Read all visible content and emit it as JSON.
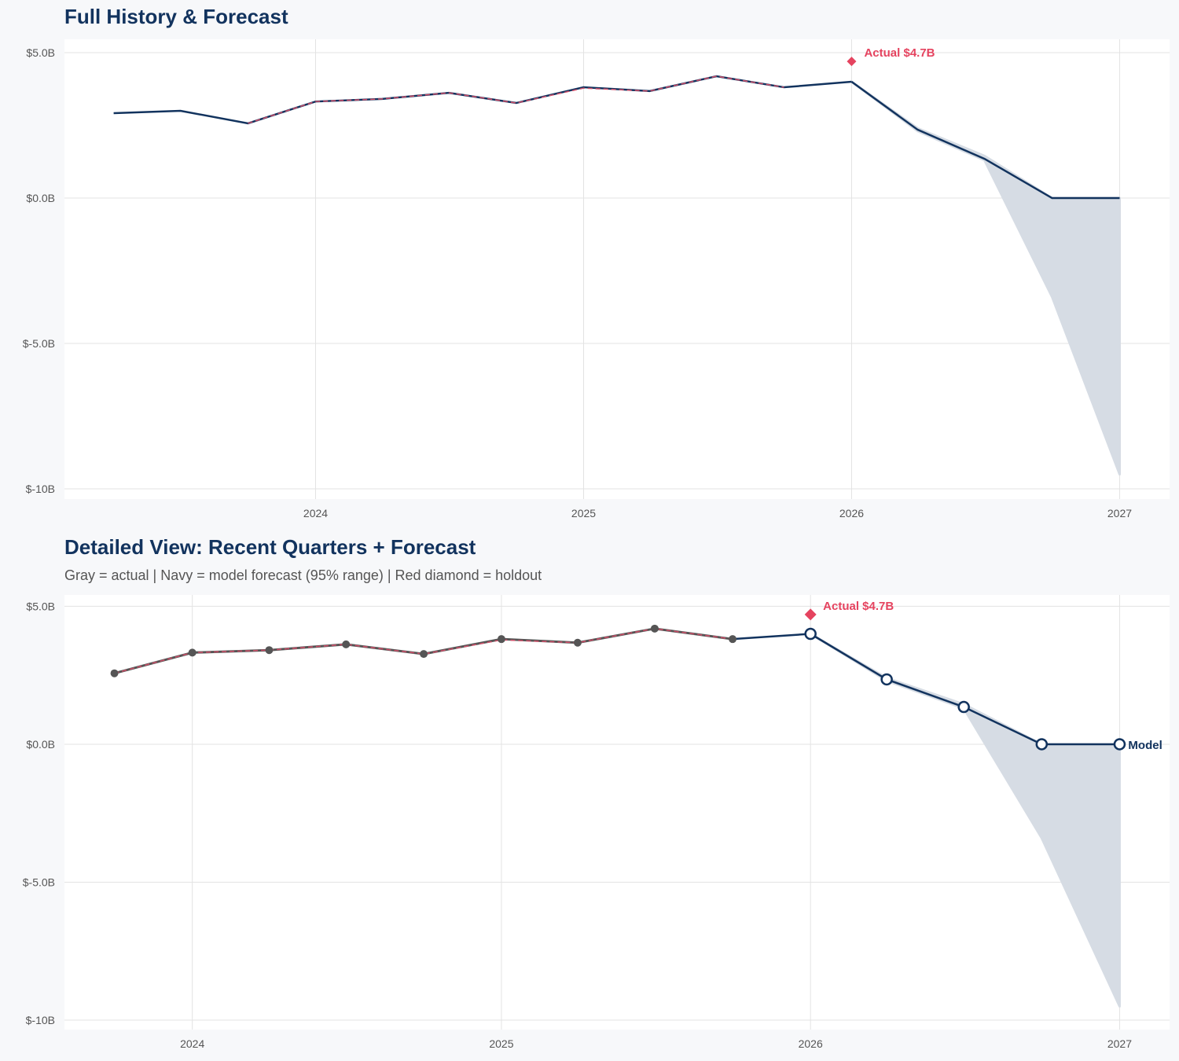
{
  "colors": {
    "navy": "#12335e",
    "actual_gray": "#555555",
    "holdout_red": "#e5435f",
    "band": "#d6dce4",
    "fitted_red": "#d0506a",
    "grid": "#e3e3e3"
  },
  "chart_data": [
    {
      "type": "line",
      "title": "Full History & Forecast",
      "xlim": [
        "2023-01-24",
        "2027-03-10"
      ],
      "ylim": [
        -10.35,
        5.46
      ],
      "x_ticks": [
        "2024",
        "2025",
        "2026",
        "2027"
      ],
      "y_ticks": [
        {
          "value": 5,
          "label": "$5.0B"
        },
        {
          "value": 0,
          "label": "$0.0B"
        },
        {
          "value": -5,
          "label": "$-5.0B"
        },
        {
          "value": -10,
          "label": "$-10B"
        }
      ],
      "grid": true,
      "actual": {
        "x": [
          "2023-04-01",
          "2023-07-01",
          "2023-10-01",
          "2024-01-01",
          "2024-04-01",
          "2024-07-01",
          "2024-10-01",
          "2025-01-01",
          "2025-04-01",
          "2025-07-01",
          "2025-10-01",
          "2026-01-01"
        ],
        "y": [
          2.92,
          3.0,
          2.57,
          3.32,
          3.41,
          3.62,
          3.27,
          3.81,
          3.68,
          4.19,
          3.81,
          4.0
        ]
      },
      "fitted": {
        "x": [
          "2023-10-01",
          "2024-01-01",
          "2024-04-01",
          "2024-07-01",
          "2024-10-01",
          "2025-01-01",
          "2025-04-01",
          "2025-07-01",
          "2025-10-01"
        ],
        "y": [
          2.57,
          3.32,
          3.41,
          3.62,
          3.27,
          3.78,
          3.68,
          4.19,
          3.81
        ]
      },
      "forecast": {
        "x": [
          "2026-01-01",
          "2026-04-01",
          "2026-07-01",
          "2026-10-01",
          "2027-01-01"
        ],
        "y": [
          4.0,
          2.35,
          1.35,
          0.0,
          0.0
        ],
        "lower": [
          4.0,
          2.3,
          1.3,
          -3.4,
          -9.5
        ],
        "upper": [
          4.0,
          2.4,
          1.45,
          0.0,
          0.0
        ]
      },
      "holdout": {
        "x": "2026-01-01",
        "y": 4.7,
        "label": "Actual $4.7B"
      }
    },
    {
      "type": "line",
      "title": "Detailed View: Recent Quarters + Forecast",
      "subtitle": "Gray = actual  |  Navy = model forecast (95% range)  |  Red diamond = holdout",
      "xlim": [
        "2023-08-03",
        "2027-03-01"
      ],
      "ylim": [
        -10.34,
        5.41
      ],
      "x_ticks": [
        "2024",
        "2025",
        "2026",
        "2027"
      ],
      "y_ticks": [
        {
          "value": 5,
          "label": "$5.0B"
        },
        {
          "value": 0,
          "label": "$0.0B"
        },
        {
          "value": -5,
          "label": "$-5.0B"
        },
        {
          "value": -10,
          "label": "$-10B"
        }
      ],
      "grid": true,
      "actual": {
        "x": [
          "2023-10-01",
          "2024-01-01",
          "2024-04-01",
          "2024-07-01",
          "2024-10-01",
          "2025-01-01",
          "2025-04-01",
          "2025-07-01",
          "2025-10-01"
        ],
        "y": [
          2.57,
          3.32,
          3.41,
          3.62,
          3.27,
          3.81,
          3.68,
          4.19,
          3.81
        ]
      },
      "fitted": {
        "x": [
          "2023-10-01",
          "2024-01-01",
          "2024-04-01",
          "2024-07-01",
          "2024-10-01",
          "2025-01-01",
          "2025-04-01",
          "2025-07-01",
          "2025-10-01"
        ],
        "y": [
          2.57,
          3.32,
          3.41,
          3.62,
          3.27,
          3.78,
          3.68,
          4.19,
          3.81
        ]
      },
      "bridge": {
        "x": [
          "2025-10-01",
          "2026-01-01"
        ],
        "y": [
          3.81,
          4.0
        ]
      },
      "forecast": {
        "x": [
          "2026-01-01",
          "2026-04-01",
          "2026-07-01",
          "2026-10-01",
          "2027-01-01"
        ],
        "y": [
          4.0,
          2.35,
          1.35,
          0.0,
          0.0
        ],
        "lower": [
          4.0,
          2.3,
          1.3,
          -3.4,
          -9.5
        ],
        "upper": [
          4.0,
          2.4,
          1.45,
          0.0,
          0.0
        ]
      },
      "holdout": {
        "x": "2026-01-01",
        "y": 4.7,
        "label": "Actual $4.7B"
      },
      "end_label": "Model"
    }
  ]
}
